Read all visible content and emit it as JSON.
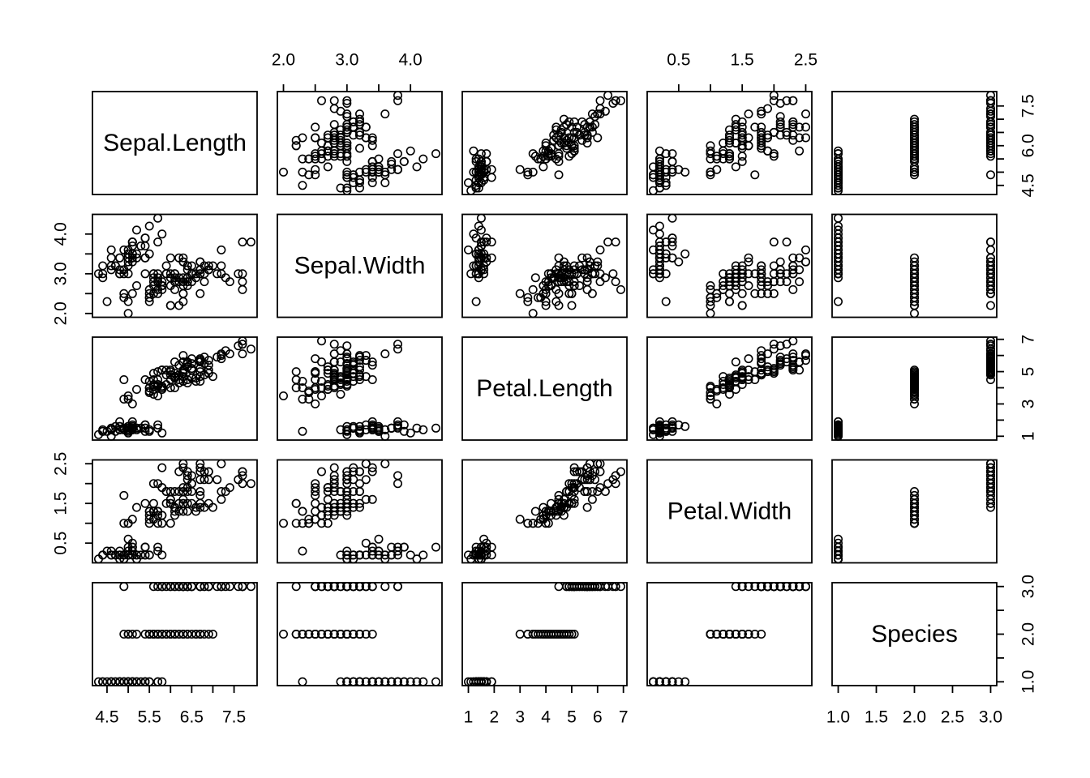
{
  "page": {
    "background": "#ffffff"
  },
  "chart_data": {
    "type": "scatter",
    "subtype": "scatterplot_matrix",
    "title": "",
    "point_marker": "open-circle",
    "grid": false,
    "colors": {
      "foreground": "#000000",
      "background": "#ffffff"
    },
    "axis_layout": {
      "top_axis_columns": [
        2,
        4
      ],
      "bottom_axis_columns": [
        1,
        3,
        5
      ],
      "left_axis_rows": [
        2,
        4
      ],
      "right_axis_rows": [
        1,
        3,
        5
      ],
      "vertical_label_rotation": "bottom-to-top"
    },
    "variables": [
      {
        "name": "Sepal.Length",
        "range": [
          4.3,
          7.9
        ],
        "ticks": [
          4.5,
          5.0,
          5.5,
          6.0,
          6.5,
          7.0,
          7.5
        ],
        "h_axis": {
          "positions": [
            4.5,
            5.5,
            6.5,
            7.5
          ],
          "labels": [
            "4.5",
            "5.5",
            "6.5",
            "7.5"
          ]
        },
        "v_axis": {
          "positions": [
            4.5,
            6.0,
            7.5
          ],
          "labels": [
            "4.5",
            "6.0",
            "7.5"
          ]
        }
      },
      {
        "name": "Sepal.Width",
        "range": [
          2.0,
          4.4
        ],
        "ticks": [
          2.0,
          2.5,
          3.0,
          3.5,
          4.0
        ],
        "h_axis": {
          "positions": [
            2.0,
            3.0,
            4.0
          ],
          "labels": [
            "2.0",
            "3.0",
            "4.0"
          ]
        },
        "v_axis": {
          "positions": [
            2.0,
            3.0,
            4.0
          ],
          "labels": [
            "2.0",
            "3.0",
            "4.0"
          ]
        }
      },
      {
        "name": "Petal.Length",
        "range": [
          1.0,
          6.9
        ],
        "ticks": [
          1,
          2,
          3,
          4,
          5,
          6,
          7
        ],
        "h_axis": {
          "positions": [
            1,
            2,
            3,
            4,
            5,
            6,
            7
          ],
          "labels": [
            "1",
            "2",
            "3",
            "4",
            "5",
            "6",
            "7"
          ]
        },
        "v_axis": {
          "positions": [
            1,
            3,
            5,
            7
          ],
          "labels": [
            "1",
            "3",
            "5",
            "7"
          ]
        }
      },
      {
        "name": "Petal.Width",
        "range": [
          0.1,
          2.5
        ],
        "ticks": [
          0.5,
          1.0,
          1.5,
          2.0,
          2.5
        ],
        "h_axis": {
          "positions": [
            0.5,
            1.5,
            2.5
          ],
          "labels": [
            "0.5",
            "1.5",
            "2.5"
          ]
        },
        "v_axis": {
          "positions": [
            0.5,
            1.5,
            2.5
          ],
          "labels": [
            "0.5",
            "1.5",
            "2.5"
          ]
        }
      },
      {
        "name": "Species",
        "range": [
          1,
          3
        ],
        "ticks": [
          1.0,
          1.5,
          2.0,
          2.5,
          3.0
        ],
        "h_axis": {
          "positions": [
            1.0,
            1.5,
            2.0,
            2.5,
            3.0
          ],
          "labels": [
            "1.0",
            "1.5",
            "2.0",
            "2.5",
            "3.0"
          ]
        },
        "v_axis": {
          "positions": [
            1.0,
            2.0,
            3.0
          ],
          "labels": [
            "1.0",
            "2.0",
            "3.0"
          ]
        }
      }
    ],
    "observations": {
      "Sepal.Length": [
        5.1,
        4.9,
        4.7,
        4.6,
        5.0,
        5.4,
        4.6,
        5.0,
        4.4,
        4.9,
        5.4,
        4.8,
        4.8,
        4.3,
        5.8,
        5.7,
        5.4,
        5.1,
        5.7,
        5.1,
        5.4,
        5.1,
        4.6,
        5.1,
        4.8,
        5.0,
        5.0,
        5.2,
        5.2,
        4.7,
        4.8,
        5.4,
        5.2,
        5.5,
        4.9,
        5.0,
        5.5,
        4.9,
        4.4,
        5.1,
        5.0,
        4.5,
        4.4,
        5.0,
        5.1,
        4.8,
        5.1,
        4.6,
        5.3,
        5.0,
        7.0,
        6.4,
        6.9,
        5.5,
        6.5,
        5.7,
        6.3,
        4.9,
        6.6,
        5.2,
        5.0,
        5.9,
        6.0,
        6.1,
        5.6,
        6.7,
        5.6,
        5.8,
        6.2,
        5.6,
        5.9,
        6.1,
        6.3,
        6.1,
        6.4,
        6.6,
        6.8,
        6.7,
        6.0,
        5.7,
        5.5,
        5.5,
        5.8,
        6.0,
        5.4,
        6.0,
        6.7,
        6.3,
        5.6,
        5.5,
        5.5,
        6.1,
        5.8,
        5.0,
        5.6,
        5.7,
        5.7,
        6.2,
        5.1,
        5.7,
        6.3,
        5.8,
        7.1,
        6.3,
        6.5,
        7.6,
        4.9,
        7.3,
        6.7,
        7.2,
        6.5,
        6.4,
        6.8,
        5.7,
        5.8,
        6.4,
        6.5,
        7.7,
        7.7,
        6.0,
        6.9,
        5.6,
        7.7,
        6.3,
        6.7,
        7.2,
        6.2,
        6.1,
        6.4,
        7.2,
        7.4,
        7.9,
        6.4,
        6.3,
        6.1,
        7.7,
        6.3,
        6.4,
        6.0,
        6.9,
        6.7,
        6.9,
        5.8,
        6.8,
        6.7,
        6.7,
        6.3,
        6.5,
        6.2,
        5.9
      ],
      "Sepal.Width": [
        3.5,
        3.0,
        3.2,
        3.1,
        3.6,
        3.9,
        3.4,
        3.4,
        2.9,
        3.1,
        3.7,
        3.4,
        3.0,
        3.0,
        4.0,
        4.4,
        3.9,
        3.5,
        3.8,
        3.8,
        3.4,
        3.7,
        3.6,
        3.3,
        3.4,
        3.0,
        3.4,
        3.5,
        3.4,
        3.2,
        3.1,
        3.4,
        4.1,
        4.2,
        3.1,
        3.2,
        3.5,
        3.6,
        3.0,
        3.4,
        3.5,
        2.3,
        3.2,
        3.5,
        3.8,
        3.0,
        3.8,
        3.2,
        3.7,
        3.3,
        3.2,
        3.2,
        3.1,
        2.3,
        2.8,
        2.8,
        3.3,
        2.4,
        2.9,
        2.7,
        2.0,
        3.0,
        2.2,
        2.9,
        2.9,
        3.1,
        3.0,
        2.7,
        2.2,
        2.5,
        3.2,
        2.8,
        2.5,
        2.8,
        2.9,
        3.0,
        2.8,
        3.0,
        2.9,
        2.6,
        2.4,
        2.4,
        2.7,
        2.7,
        3.0,
        3.4,
        3.1,
        2.3,
        3.0,
        2.5,
        2.6,
        3.0,
        2.6,
        2.3,
        2.7,
        3.0,
        2.9,
        2.9,
        2.5,
        2.8,
        3.3,
        2.7,
        3.0,
        2.9,
        3.0,
        3.0,
        2.5,
        2.9,
        2.5,
        3.6,
        3.2,
        2.7,
        3.0,
        2.5,
        2.8,
        3.2,
        3.0,
        3.8,
        2.6,
        2.2,
        3.2,
        2.8,
        2.8,
        2.7,
        3.3,
        3.2,
        2.8,
        3.0,
        2.8,
        3.0,
        2.8,
        3.8,
        2.8,
        2.8,
        2.6,
        3.0,
        3.4,
        3.1,
        3.0,
        3.1,
        3.1,
        3.1,
        2.7,
        3.2,
        3.3,
        3.0,
        2.5,
        3.0,
        3.4,
        3.0
      ],
      "Petal.Length": [
        1.4,
        1.4,
        1.3,
        1.5,
        1.4,
        1.7,
        1.4,
        1.5,
        1.4,
        1.5,
        1.5,
        1.6,
        1.4,
        1.1,
        1.2,
        1.5,
        1.3,
        1.4,
        1.7,
        1.5,
        1.7,
        1.5,
        1.0,
        1.7,
        1.9,
        1.6,
        1.6,
        1.5,
        1.4,
        1.6,
        1.6,
        1.5,
        1.5,
        1.4,
        1.5,
        1.2,
        1.3,
        1.4,
        1.3,
        1.5,
        1.3,
        1.3,
        1.3,
        1.6,
        1.9,
        1.4,
        1.6,
        1.4,
        1.5,
        1.4,
        4.7,
        4.5,
        4.9,
        4.0,
        4.6,
        4.5,
        4.7,
        3.3,
        4.6,
        3.9,
        3.5,
        4.2,
        4.0,
        4.7,
        3.6,
        4.4,
        4.5,
        4.1,
        4.5,
        3.9,
        4.8,
        4.0,
        4.9,
        4.7,
        4.3,
        4.4,
        4.8,
        5.0,
        4.5,
        3.5,
        3.8,
        3.7,
        3.9,
        5.1,
        4.5,
        4.5,
        4.7,
        4.4,
        4.1,
        4.0,
        4.4,
        4.6,
        4.0,
        3.3,
        4.2,
        4.2,
        4.2,
        4.3,
        3.0,
        4.1,
        6.0,
        5.1,
        5.9,
        5.6,
        5.8,
        6.6,
        4.5,
        6.3,
        5.8,
        6.1,
        5.1,
        5.3,
        5.5,
        5.0,
        5.1,
        5.3,
        5.5,
        6.7,
        6.9,
        5.0,
        5.7,
        4.9,
        6.7,
        4.9,
        5.7,
        6.0,
        4.8,
        4.9,
        5.6,
        5.8,
        6.1,
        6.4,
        5.6,
        5.1,
        5.6,
        6.1,
        5.6,
        5.5,
        4.8,
        5.4,
        5.6,
        5.1,
        5.1,
        5.9,
        5.7,
        5.2,
        5.0,
        5.2,
        5.4,
        5.1
      ],
      "Petal.Width": [
        0.2,
        0.2,
        0.2,
        0.2,
        0.2,
        0.4,
        0.3,
        0.2,
        0.2,
        0.1,
        0.2,
        0.2,
        0.1,
        0.1,
        0.2,
        0.4,
        0.4,
        0.3,
        0.3,
        0.3,
        0.2,
        0.4,
        0.2,
        0.5,
        0.2,
        0.2,
        0.4,
        0.2,
        0.2,
        0.2,
        0.2,
        0.4,
        0.1,
        0.2,
        0.2,
        0.2,
        0.2,
        0.1,
        0.2,
        0.2,
        0.3,
        0.3,
        0.2,
        0.6,
        0.4,
        0.3,
        0.2,
        0.2,
        0.2,
        0.2,
        1.4,
        1.5,
        1.5,
        1.3,
        1.5,
        1.3,
        1.6,
        1.0,
        1.3,
        1.4,
        1.0,
        1.5,
        1.0,
        1.4,
        1.3,
        1.4,
        1.5,
        1.0,
        1.5,
        1.1,
        1.8,
        1.3,
        1.5,
        1.2,
        1.3,
        1.4,
        1.4,
        1.7,
        1.5,
        1.0,
        1.1,
        1.0,
        1.2,
        1.6,
        1.5,
        1.6,
        1.5,
        1.3,
        1.3,
        1.3,
        1.2,
        1.4,
        1.2,
        1.0,
        1.3,
        1.2,
        1.3,
        1.3,
        1.1,
        1.3,
        2.5,
        1.9,
        2.1,
        1.8,
        2.2,
        2.1,
        1.7,
        1.8,
        1.8,
        2.5,
        2.0,
        1.9,
        2.1,
        2.0,
        2.4,
        2.3,
        1.8,
        2.2,
        2.3,
        1.5,
        2.3,
        2.0,
        2.0,
        1.8,
        2.1,
        1.8,
        1.8,
        1.8,
        2.1,
        1.6,
        1.9,
        2.0,
        2.2,
        1.5,
        1.4,
        2.3,
        2.4,
        1.8,
        1.8,
        2.1,
        2.4,
        2.3,
        1.9,
        2.3,
        2.5,
        2.3,
        1.9,
        2.0,
        2.3,
        1.8
      ],
      "Species": [
        1,
        1,
        1,
        1,
        1,
        1,
        1,
        1,
        1,
        1,
        1,
        1,
        1,
        1,
        1,
        1,
        1,
        1,
        1,
        1,
        1,
        1,
        1,
        1,
        1,
        1,
        1,
        1,
        1,
        1,
        1,
        1,
        1,
        1,
        1,
        1,
        1,
        1,
        1,
        1,
        1,
        1,
        1,
        1,
        1,
        1,
        1,
        1,
        1,
        1,
        2,
        2,
        2,
        2,
        2,
        2,
        2,
        2,
        2,
        2,
        2,
        2,
        2,
        2,
        2,
        2,
        2,
        2,
        2,
        2,
        2,
        2,
        2,
        2,
        2,
        2,
        2,
        2,
        2,
        2,
        2,
        2,
        2,
        2,
        2,
        2,
        2,
        2,
        2,
        2,
        2,
        2,
        2,
        2,
        2,
        2,
        2,
        2,
        2,
        2,
        3,
        3,
        3,
        3,
        3,
        3,
        3,
        3,
        3,
        3,
        3,
        3,
        3,
        3,
        3,
        3,
        3,
        3,
        3,
        3,
        3,
        3,
        3,
        3,
        3,
        3,
        3,
        3,
        3,
        3,
        3,
        3,
        3,
        3,
        3,
        3,
        3,
        3,
        3,
        3,
        3,
        3,
        3,
        3,
        3,
        3,
        3,
        3,
        3,
        3
      ]
    }
  }
}
